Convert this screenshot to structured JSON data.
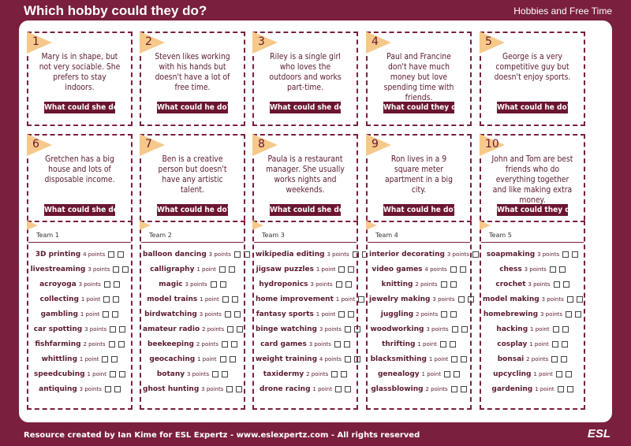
{
  "header": {
    "title": "Which hobby could they do?",
    "topic": "Hobbies and Free Time"
  },
  "cards": [
    {
      "number": "1",
      "text": "Mary is in shape, but not very sociable. She prefers to stay indoors.",
      "question": "What could she do?"
    },
    {
      "number": "2",
      "text": "Steven likes working with his hands but doesn't have a lot of free time.",
      "question": "What could he do?"
    },
    {
      "number": "3",
      "text": "Riley is a single girl who loves the outdoors and works part-time.",
      "question": "What could she do?"
    },
    {
      "number": "4",
      "text": "Paul and Francine don't have much money but love spending time with friends.",
      "question": "What could they do?"
    },
    {
      "number": "5",
      "text": "George is a very competitive guy but doesn't enjoy sports.",
      "question": "What could he do?"
    },
    {
      "number": "6",
      "text": "Gretchen has a big house and lots of disposable income.",
      "question": "What could she do?"
    },
    {
      "number": "7",
      "text": "Ben is a creative person but doesn't have any artistic talent.",
      "question": "What could he do?"
    },
    {
      "number": "8",
      "text": "Paula is a restaurant manager. She usually works nights and weekends.",
      "question": "What could she do?"
    },
    {
      "number": "9",
      "text": "Ron lives in a 9 square meter apartment in a big city.",
      "question": "What could he do?"
    },
    {
      "number": "10",
      "text": "John and Tom are best friends who do everything together and like making extra money.",
      "question": "What could they do?"
    }
  ],
  "teams": [
    {
      "name": "Team 1",
      "items": [
        {
          "hobby": "3D printing",
          "points": "4 points"
        },
        {
          "hobby": "livestreaming",
          "points": "3 points"
        },
        {
          "hobby": "acroyoga",
          "points": "3 points"
        },
        {
          "hobby": "collecting",
          "points": "1 point"
        },
        {
          "hobby": "gambling",
          "points": "1 point"
        },
        {
          "hobby": "car spotting",
          "points": "3 points"
        },
        {
          "hobby": "fishfarming",
          "points": "2 points"
        },
        {
          "hobby": "whittling",
          "points": "1 point"
        },
        {
          "hobby": "speedcubing",
          "points": "1 point"
        },
        {
          "hobby": "antiquing",
          "points": "3 points"
        }
      ]
    },
    {
      "name": "Team 2",
      "items": [
        {
          "hobby": "balloon dancing",
          "points": "3 points"
        },
        {
          "hobby": "calligraphy",
          "points": "1 point"
        },
        {
          "hobby": "magic",
          "points": "3 points"
        },
        {
          "hobby": "model trains",
          "points": "1 point"
        },
        {
          "hobby": "birdwatching",
          "points": "3 points"
        },
        {
          "hobby": "amateur radio",
          "points": "2 points"
        },
        {
          "hobby": "beekeeping",
          "points": "2 points"
        },
        {
          "hobby": "geocaching",
          "points": "1 point"
        },
        {
          "hobby": "botany",
          "points": "3 points"
        },
        {
          "hobby": "ghost hunting",
          "points": "3 points"
        }
      ]
    },
    {
      "name": "Team 3",
      "items": [
        {
          "hobby": "wikipedia editing",
          "points": "3 points"
        },
        {
          "hobby": "jigsaw puzzles",
          "points": "1 point"
        },
        {
          "hobby": "hydroponics",
          "points": "3 points"
        },
        {
          "hobby": "home improvement",
          "points": "1 point"
        },
        {
          "hobby": "fantasy sports",
          "points": "1 point"
        },
        {
          "hobby": "binge watching",
          "points": "3 points"
        },
        {
          "hobby": "card games",
          "points": "3 points"
        },
        {
          "hobby": "weight training",
          "points": "4 points"
        },
        {
          "hobby": "taxidermy",
          "points": "2 points"
        },
        {
          "hobby": "drone racing",
          "points": "1 point"
        }
      ]
    },
    {
      "name": "Team 4",
      "items": [
        {
          "hobby": "interior decorating",
          "points": "3 points"
        },
        {
          "hobby": "video games",
          "points": "4 points"
        },
        {
          "hobby": "knitting",
          "points": "2 points"
        },
        {
          "hobby": "jewelry making",
          "points": "3 points"
        },
        {
          "hobby": "juggling",
          "points": "2 points"
        },
        {
          "hobby": "woodworking",
          "points": "3 points"
        },
        {
          "hobby": "thrifting",
          "points": "1 point"
        },
        {
          "hobby": "blacksmithing",
          "points": "1 point"
        },
        {
          "hobby": "genealogy",
          "points": "1 point"
        },
        {
          "hobby": "glassblowing",
          "points": "2 points"
        }
      ]
    },
    {
      "name": "Team 5",
      "items": [
        {
          "hobby": "soapmaking",
          "points": "3 points"
        },
        {
          "hobby": "chess",
          "points": "3 points"
        },
        {
          "hobby": "crochet",
          "points": "3 points"
        },
        {
          "hobby": "model making",
          "points": "3 points"
        },
        {
          "hobby": "homebrewing",
          "points": "3 points"
        },
        {
          "hobby": "hacking",
          "points": "1 point"
        },
        {
          "hobby": "cosplay",
          "points": "1 point"
        },
        {
          "hobby": "bonsai",
          "points": "2 points"
        },
        {
          "hobby": "upcycling",
          "points": "1 point"
        },
        {
          "hobby": "gardening",
          "points": "1 point"
        }
      ]
    }
  ],
  "footer": {
    "credit": "Resource created by Ian Kime for ESL Expertz - www.eslexpertz.com - All rights reserved",
    "logo": "ESL"
  }
}
